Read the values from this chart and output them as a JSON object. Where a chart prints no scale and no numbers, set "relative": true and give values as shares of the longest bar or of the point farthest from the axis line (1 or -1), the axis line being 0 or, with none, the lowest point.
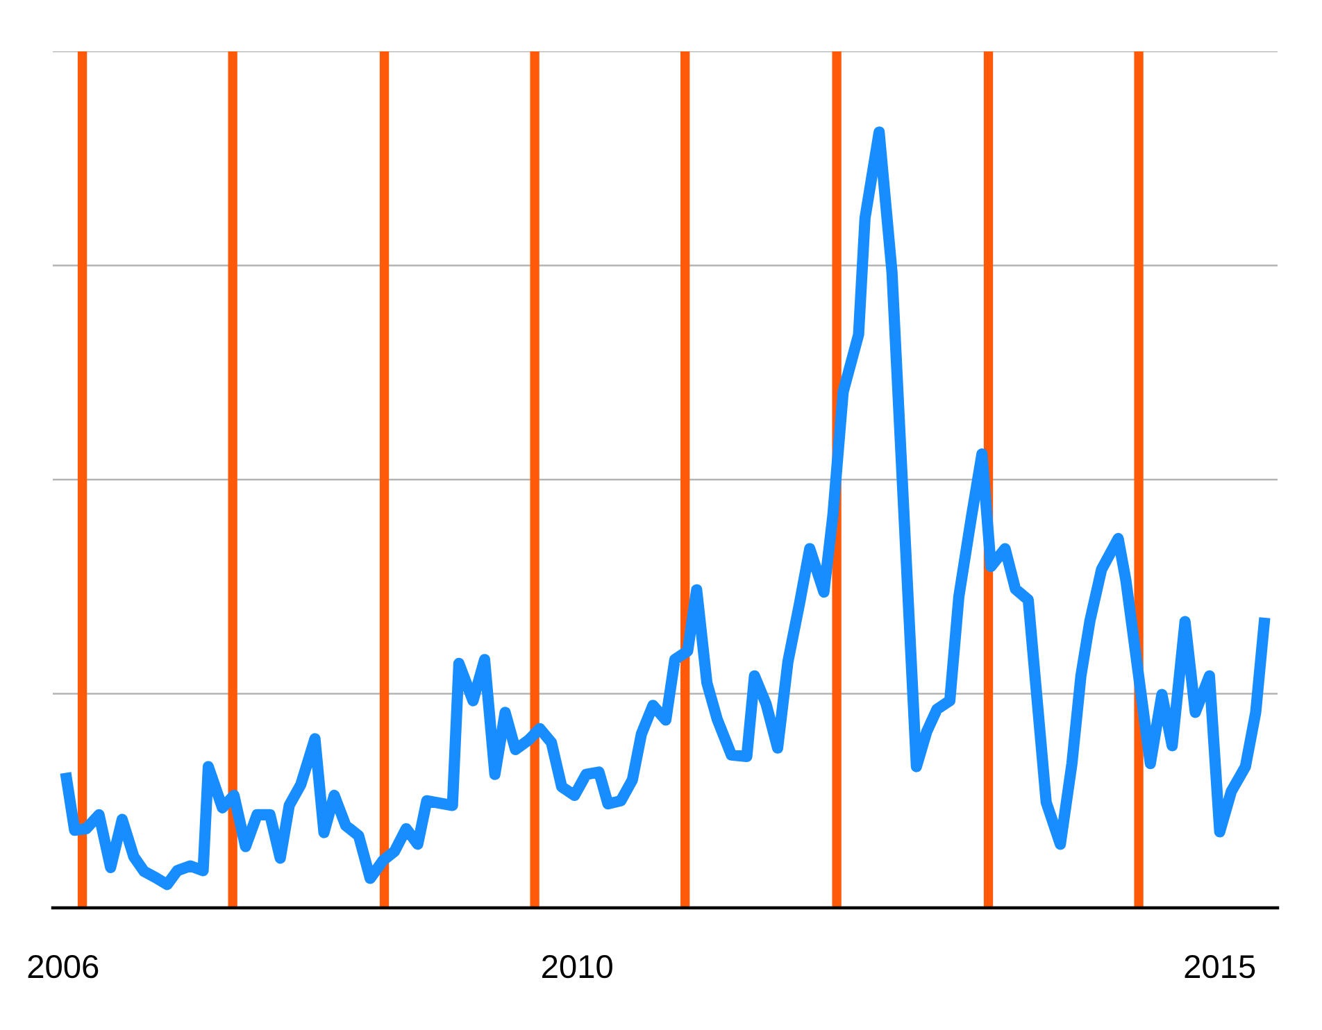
{
  "chart_data": {
    "type": "line",
    "relative": true,
    "x": [
      2006.02,
      2006.09,
      2006.18,
      2006.28,
      2006.37,
      2006.46,
      2006.55,
      2006.63,
      2006.72,
      2006.81,
      2006.89,
      2006.99,
      2007.09,
      2007.13,
      2007.24,
      2007.33,
      2007.42,
      2007.51,
      2007.61,
      2007.69,
      2007.76,
      2007.85,
      2007.96,
      2008.03,
      2008.11,
      2008.2,
      2008.3,
      2008.39,
      2008.49,
      2008.58,
      2008.67,
      2008.76,
      2008.83,
      2009.03,
      2009.08,
      2009.19,
      2009.28,
      2009.36,
      2009.44,
      2009.52,
      2009.62,
      2009.71,
      2009.8,
      2009.88,
      2009.98,
      2010.07,
      2010.17,
      2010.24,
      2010.34,
      2010.43,
      2010.5,
      2010.59,
      2010.69,
      2010.76,
      2010.86,
      2010.93,
      2011.01,
      2011.09,
      2011.2,
      2011.32,
      2011.38,
      2011.47,
      2011.56,
      2011.64,
      2011.73,
      2011.81,
      2011.92,
      2011.99,
      2012.07,
      2012.19,
      2012.24,
      2012.35,
      2012.45,
      2012.64,
      2012.72,
      2012.8,
      2012.9,
      2012.97,
      2013.07,
      2013.15,
      2013.22,
      2013.33,
      2013.41,
      2013.51,
      2013.65,
      2013.76,
      2013.85,
      2013.92,
      2013.99,
      2014.08,
      2014.21,
      2014.27,
      2014.46,
      2014.55,
      2014.63,
      2014.73,
      2014.81,
      2014.92,
      2015.0,
      2015.09,
      2015.2,
      2015.28,
      2015.35
    ],
    "series": [
      {
        "color": "#178dff",
        "values": [
          0.174,
          0.1,
          0.102,
          0.12,
          0.052,
          0.114,
          0.066,
          0.047,
          0.039,
          0.03,
          0.048,
          0.054,
          0.048,
          0.182,
          0.129,
          0.145,
          0.079,
          0.12,
          0.12,
          0.064,
          0.132,
          0.159,
          0.218,
          0.097,
          0.145,
          0.106,
          0.093,
          0.038,
          0.061,
          0.073,
          0.102,
          0.082,
          0.138,
          0.132,
          0.315,
          0.267,
          0.32,
          0.172,
          0.252,
          0.204,
          0.216,
          0.231,
          0.213,
          0.156,
          0.145,
          0.172,
          0.175,
          0.134,
          0.138,
          0.165,
          0.224,
          0.261,
          0.242,
          0.32,
          0.331,
          0.41,
          0.29,
          0.243,
          0.197,
          0.195,
          0.299,
          0.263,
          0.206,
          0.317,
          0.392,
          0.463,
          0.407,
          0.506,
          0.665,
          0.739,
          0.889,
          1,
          0.819,
          0.182,
          0.227,
          0.256,
          0.267,
          0.401,
          0.506,
          0.585,
          0.44,
          0.463,
          0.411,
          0.397,
          0.136,
          0.082,
          0.186,
          0.299,
          0.37,
          0.436,
          0.476,
          0.422,
          0.186,
          0.275,
          0.209,
          0.369,
          0.252,
          0.299,
          0.098,
          0.15,
          0.182,
          0.252,
          0.374
        ]
      }
    ],
    "xlim": [
      2005.92,
      2015.45
    ],
    "xticks": [
      2006,
      2010,
      2015
    ],
    "grid": "y",
    "ref_lines": [
      {
        "axis": "x",
        "value": 2006.15,
        "color": "#ff5a0a"
      },
      {
        "axis": "x",
        "value": 2007.32,
        "color": "#ff5a0a"
      },
      {
        "axis": "x",
        "value": 2008.5,
        "color": "#ff5a0a"
      },
      {
        "axis": "x",
        "value": 2009.67,
        "color": "#ff5a0a"
      },
      {
        "axis": "x",
        "value": 2010.84,
        "color": "#ff5a0a"
      },
      {
        "axis": "x",
        "value": 2012.02,
        "color": "#ff5a0a"
      },
      {
        "axis": "x",
        "value": 2013.2,
        "color": "#ff5a0a"
      },
      {
        "axis": "x",
        "value": 2014.37,
        "color": "#ff5a0a"
      }
    ]
  }
}
